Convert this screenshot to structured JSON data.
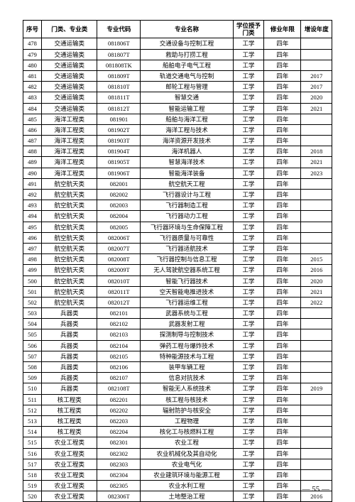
{
  "headers": {
    "idx": "序号",
    "category": "门类、专业类",
    "code": "专业代码",
    "name": "专业名称",
    "degree": "学位授予门类",
    "duration": "修业年限",
    "year": "增设年度"
  },
  "page_number": "— 55 —",
  "rows": [
    {
      "idx": "478",
      "cat": "交通运输类",
      "code": "081806T",
      "name": "交通设备与控制工程",
      "deg": "工学",
      "dur": "四年",
      "year": ""
    },
    {
      "idx": "479",
      "cat": "交通运输类",
      "code": "081807T",
      "name": "救助与打捞工程",
      "deg": "工学",
      "dur": "四年",
      "year": ""
    },
    {
      "idx": "480",
      "cat": "交通运输类",
      "code": "081808TK",
      "name": "船舶电子电气工程",
      "deg": "工学",
      "dur": "四年",
      "year": ""
    },
    {
      "idx": "481",
      "cat": "交通运输类",
      "code": "081809T",
      "name": "轨道交通电气与控制",
      "deg": "工学",
      "dur": "四年",
      "year": "2017"
    },
    {
      "idx": "482",
      "cat": "交通运输类",
      "code": "081810T",
      "name": "邮轮工程与管理",
      "deg": "工学",
      "dur": "四年",
      "year": "2017"
    },
    {
      "idx": "483",
      "cat": "交通运输类",
      "code": "081811T",
      "name": "智慧交通",
      "deg": "工学",
      "dur": "四年",
      "year": "2020"
    },
    {
      "idx": "484",
      "cat": "交通运输类",
      "code": "081812T",
      "name": "智能运输工程",
      "deg": "工学",
      "dur": "四年",
      "year": "2021"
    },
    {
      "idx": "485",
      "cat": "海洋工程类",
      "code": "081901",
      "name": "船舶与海洋工程",
      "deg": "工学",
      "dur": "四年",
      "year": ""
    },
    {
      "idx": "486",
      "cat": "海洋工程类",
      "code": "081902T",
      "name": "海洋工程与技术",
      "deg": "工学",
      "dur": "四年",
      "year": ""
    },
    {
      "idx": "487",
      "cat": "海洋工程类",
      "code": "081903T",
      "name": "海洋资源开发技术",
      "deg": "工学",
      "dur": "四年",
      "year": ""
    },
    {
      "idx": "488",
      "cat": "海洋工程类",
      "code": "081904T",
      "name": "海洋机器人",
      "deg": "工学",
      "dur": "四年",
      "year": "2018"
    },
    {
      "idx": "489",
      "cat": "海洋工程类",
      "code": "081905T",
      "name": "智慧海洋技术",
      "deg": "工学",
      "dur": "四年",
      "year": "2021"
    },
    {
      "idx": "490",
      "cat": "海洋工程类",
      "code": "081906T",
      "name": "智能海洋装备",
      "deg": "工学",
      "dur": "四年",
      "year": "2023"
    },
    {
      "idx": "491",
      "cat": "航空航天类",
      "code": "082001",
      "name": "航空航天工程",
      "deg": "工学",
      "dur": "四年",
      "year": ""
    },
    {
      "idx": "492",
      "cat": "航空航天类",
      "code": "082002",
      "name": "飞行器设计与工程",
      "deg": "工学",
      "dur": "四年",
      "year": ""
    },
    {
      "idx": "493",
      "cat": "航空航天类",
      "code": "082003",
      "name": "飞行器制造工程",
      "deg": "工学",
      "dur": "四年",
      "year": ""
    },
    {
      "idx": "494",
      "cat": "航空航天类",
      "code": "082004",
      "name": "飞行器动力工程",
      "deg": "工学",
      "dur": "四年",
      "year": ""
    },
    {
      "idx": "495",
      "cat": "航空航天类",
      "code": "082005",
      "name": "飞行器环境与生命保障工程",
      "deg": "工学",
      "dur": "四年",
      "year": ""
    },
    {
      "idx": "496",
      "cat": "航空航天类",
      "code": "082006T",
      "name": "飞行器质量与可靠性",
      "deg": "工学",
      "dur": "四年",
      "year": ""
    },
    {
      "idx": "497",
      "cat": "航空航天类",
      "code": "082007T",
      "name": "飞行器适航技术",
      "deg": "工学",
      "dur": "四年",
      "year": ""
    },
    {
      "idx": "498",
      "cat": "航空航天类",
      "code": "082008T",
      "name": "飞行器控制与信息工程",
      "deg": "工学",
      "dur": "四年",
      "year": "2015"
    },
    {
      "idx": "499",
      "cat": "航空航天类",
      "code": "082009T",
      "name": "无人驾驶航空器系统工程",
      "deg": "工学",
      "dur": "四年",
      "year": "2016"
    },
    {
      "idx": "500",
      "cat": "航空航天类",
      "code": "082010T",
      "name": "智能飞行器技术",
      "deg": "工学",
      "dur": "四年",
      "year": "2020"
    },
    {
      "idx": "501",
      "cat": "航空航天类",
      "code": "082011T",
      "name": "空天智能电推进技术",
      "deg": "工学",
      "dur": "四年",
      "year": "2021"
    },
    {
      "idx": "502",
      "cat": "航空航天类",
      "code": "082012T",
      "name": "飞行器运维工程",
      "deg": "工学",
      "dur": "四年",
      "year": "2022"
    },
    {
      "idx": "503",
      "cat": "兵器类",
      "code": "082101",
      "name": "武器系统与工程",
      "deg": "工学",
      "dur": "四年",
      "year": ""
    },
    {
      "idx": "504",
      "cat": "兵器类",
      "code": "082102",
      "name": "武器发射工程",
      "deg": "工学",
      "dur": "四年",
      "year": ""
    },
    {
      "idx": "505",
      "cat": "兵器类",
      "code": "082103",
      "name": "探测制导与控制技术",
      "deg": "工学",
      "dur": "四年",
      "year": ""
    },
    {
      "idx": "506",
      "cat": "兵器类",
      "code": "082104",
      "name": "弹药工程与爆炸技术",
      "deg": "工学",
      "dur": "四年",
      "year": ""
    },
    {
      "idx": "507",
      "cat": "兵器类",
      "code": "082105",
      "name": "特种能源技术与工程",
      "deg": "工学",
      "dur": "四年",
      "year": ""
    },
    {
      "idx": "508",
      "cat": "兵器类",
      "code": "082106",
      "name": "装甲车辆工程",
      "deg": "工学",
      "dur": "四年",
      "year": ""
    },
    {
      "idx": "509",
      "cat": "兵器类",
      "code": "082107",
      "name": "信息对抗技术",
      "deg": "工学",
      "dur": "四年",
      "year": ""
    },
    {
      "idx": "510",
      "cat": "兵器类",
      "code": "082108T",
      "name": "智能无人系统技术",
      "deg": "工学",
      "dur": "四年",
      "year": "2019"
    },
    {
      "idx": "511",
      "cat": "核工程类",
      "code": "082201",
      "name": "核工程与核技术",
      "deg": "工学",
      "dur": "四年",
      "year": ""
    },
    {
      "idx": "512",
      "cat": "核工程类",
      "code": "082202",
      "name": "辐射防护与核安全",
      "deg": "工学",
      "dur": "四年",
      "year": ""
    },
    {
      "idx": "513",
      "cat": "核工程类",
      "code": "082203",
      "name": "工程物理",
      "deg": "工学",
      "dur": "四年",
      "year": ""
    },
    {
      "idx": "514",
      "cat": "核工程类",
      "code": "082204",
      "name": "核化工与核燃料工程",
      "deg": "工学",
      "dur": "四年",
      "year": ""
    },
    {
      "idx": "515",
      "cat": "农业工程类",
      "code": "082301",
      "name": "农业工程",
      "deg": "工学",
      "dur": "四年",
      "year": ""
    },
    {
      "idx": "516",
      "cat": "农业工程类",
      "code": "082302",
      "name": "农业机械化及其自动化",
      "deg": "工学",
      "dur": "四年",
      "year": ""
    },
    {
      "idx": "517",
      "cat": "农业工程类",
      "code": "082303",
      "name": "农业电气化",
      "deg": "工学",
      "dur": "四年",
      "year": ""
    },
    {
      "idx": "518",
      "cat": "农业工程类",
      "code": "082304",
      "name": "农业建筑环境与能源工程",
      "deg": "工学",
      "dur": "四年",
      "year": ""
    },
    {
      "idx": "519",
      "cat": "农业工程类",
      "code": "082305",
      "name": "农业水利工程",
      "deg": "工学",
      "dur": "四年",
      "year": ""
    },
    {
      "idx": "520",
      "cat": "农业工程类",
      "code": "082306T",
      "name": "土地整治工程",
      "deg": "工学",
      "dur": "四年",
      "year": "2016"
    }
  ]
}
